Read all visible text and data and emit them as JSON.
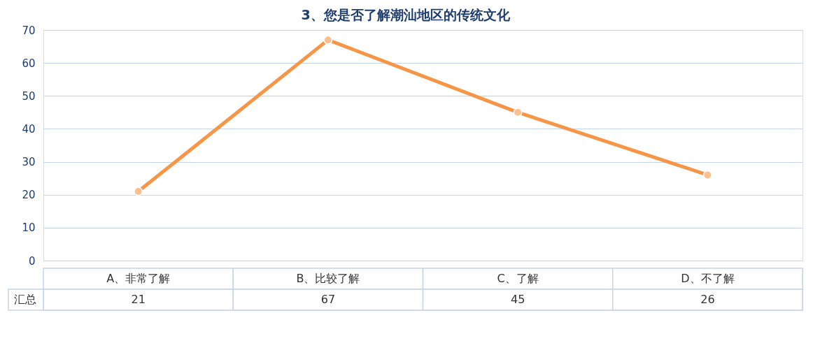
{
  "chart_data": {
    "type": "line",
    "title": "3、您是否了解潮汕地区的传统文化",
    "categories": [
      "A、非常了解",
      "B、比较了解",
      "C、了解",
      "D、不了解"
    ],
    "series": [
      {
        "name": "汇总",
        "color": "#f79646",
        "values": [
          21,
          67,
          45,
          26
        ]
      }
    ],
    "ylim": [
      0,
      70
    ],
    "yticks": [
      0,
      10,
      20,
      30,
      40,
      50,
      60,
      70
    ],
    "grid": "y",
    "marker": "circle",
    "line_style": "solid",
    "data_labels": true
  }
}
